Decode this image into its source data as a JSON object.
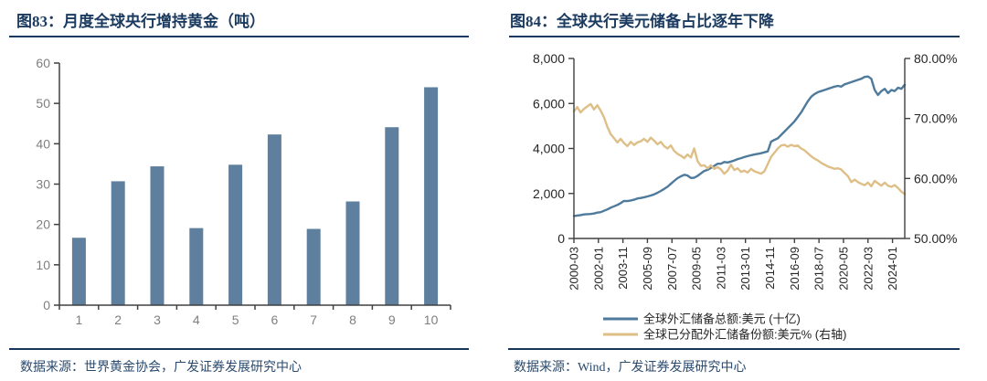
{
  "panels": [
    {
      "title": "图83：月度全球央行增持黄金（吨）",
      "source": "数据来源：世界黄金协会，广发证券发展研究中心"
    },
    {
      "title": "图84：全球央行美元储备占比逐年下降",
      "source": "数据来源：Wind，广发证券发展研究中心"
    }
  ],
  "colors": {
    "title_navy": "#1a3a5f",
    "bar_blue": "#5e7f9d",
    "line_blue": "#4e7a9c",
    "line_gold": "#debf87",
    "axis_dark": "#404040",
    "tick_gray": "#7f7f7f",
    "tick_black": "#262626"
  },
  "chart_data": [
    {
      "id": "monthly-central-bank-gold",
      "type": "bar",
      "title": "图83：月度全球央行增持黄金（吨）",
      "xlabel": "",
      "ylabel": "",
      "categories": [
        "1",
        "2",
        "3",
        "4",
        "5",
        "6",
        "7",
        "8",
        "9",
        "10"
      ],
      "values": [
        16.7,
        30.7,
        34.4,
        19.1,
        34.8,
        42.3,
        18.9,
        25.7,
        44.1,
        54.0
      ],
      "ylim": [
        0,
        60
      ],
      "yticks": [
        0,
        10,
        20,
        30,
        40,
        50,
        60
      ],
      "grid": false,
      "legend": null
    },
    {
      "id": "global-usd-reserves",
      "type": "line",
      "title": "图84：全球央行美元储备占比逐年下降",
      "x_start": "2000-03",
      "x_frequency": "quarterly",
      "x_total_months": 297,
      "x_tick_interval_months": 22,
      "x_tick_labels": [
        "2000-03",
        "2002-01",
        "2003-11",
        "2005-09",
        "2007-07",
        "2009-05",
        "2011-03",
        "2013-01",
        "2014-11",
        "2016-09",
        "2018-07",
        "2020-05",
        "2022-03",
        "2024-01"
      ],
      "left_axis": {
        "min": 0,
        "max": 8000,
        "tick_values": [
          0,
          2000,
          4000,
          6000,
          8000
        ],
        "tick_labels": [
          "0",
          "2,000",
          "4,000",
          "6,000",
          "8,000"
        ]
      },
      "right_axis": {
        "min": 50,
        "max": 80,
        "tick_values": [
          50,
          60,
          70,
          80
        ],
        "tick_labels": [
          "50.00%",
          "60.00%",
          "70.00%",
          "80.00%"
        ]
      },
      "grid": false,
      "legend_position": "bottom",
      "series": [
        {
          "name": "全球外汇储备总额:美元 (十亿)",
          "axis": "left",
          "values": [
            1000,
            1020,
            1040,
            1070,
            1080,
            1090,
            1110,
            1150,
            1170,
            1230,
            1290,
            1370,
            1430,
            1490,
            1570,
            1670,
            1660,
            1690,
            1720,
            1780,
            1800,
            1830,
            1870,
            1910,
            1960,
            2030,
            2110,
            2200,
            2300,
            2430,
            2560,
            2680,
            2760,
            2830,
            2800,
            2690,
            2700,
            2780,
            2890,
            3000,
            3050,
            3140,
            3230,
            3320,
            3320,
            3400,
            3380,
            3420,
            3470,
            3530,
            3570,
            3620,
            3660,
            3700,
            3730,
            3760,
            3790,
            3830,
            3870,
            4300,
            4380,
            4450,
            4600,
            4750,
            4900,
            5050,
            5200,
            5400,
            5600,
            5850,
            6100,
            6300,
            6420,
            6500,
            6550,
            6600,
            6650,
            6700,
            6750,
            6780,
            6750,
            6850,
            6900,
            6950,
            7000,
            7050,
            7100,
            7180,
            7200,
            7100,
            6600,
            6380,
            6550,
            6650,
            6460,
            6600,
            6550,
            6700,
            6650,
            6830
          ]
        },
        {
          "name": "全球已分配外汇储备份额:美元% (右轴)",
          "axis": "right",
          "values": [
            71.2,
            71.9,
            71.0,
            71.6,
            72.0,
            72.4,
            71.5,
            72.2,
            71.3,
            70.2,
            68.6,
            67.4,
            66.7,
            66.0,
            66.6,
            65.9,
            65.4,
            66.1,
            65.6,
            66.0,
            66.2,
            66.6,
            66.1,
            66.8,
            66.3,
            65.7,
            66.1,
            65.4,
            65.0,
            65.5,
            64.6,
            64.1,
            63.8,
            63.4,
            64.0,
            63.5,
            65.0,
            62.9,
            62.1,
            62.2,
            61.7,
            62.2,
            61.6,
            61.9,
            61.5,
            60.8,
            61.3,
            62.3,
            61.4,
            61.7,
            61.1,
            61.3,
            61.0,
            61.6,
            61.2,
            61.0,
            60.8,
            61.2,
            62.4,
            63.6,
            64.3,
            65.0,
            65.5,
            65.6,
            65.3,
            65.6,
            65.4,
            65.5,
            65.0,
            64.7,
            64.2,
            63.7,
            63.3,
            63.0,
            62.6,
            62.3,
            62.0,
            61.8,
            61.6,
            61.7,
            61.5,
            60.9,
            60.4,
            59.4,
            59.8,
            59.4,
            59.1,
            58.9,
            59.3,
            58.7,
            59.6,
            59.2,
            58.8,
            59.3,
            58.8,
            58.6,
            58.9,
            58.4,
            57.8,
            57.4
          ]
        }
      ]
    }
  ]
}
